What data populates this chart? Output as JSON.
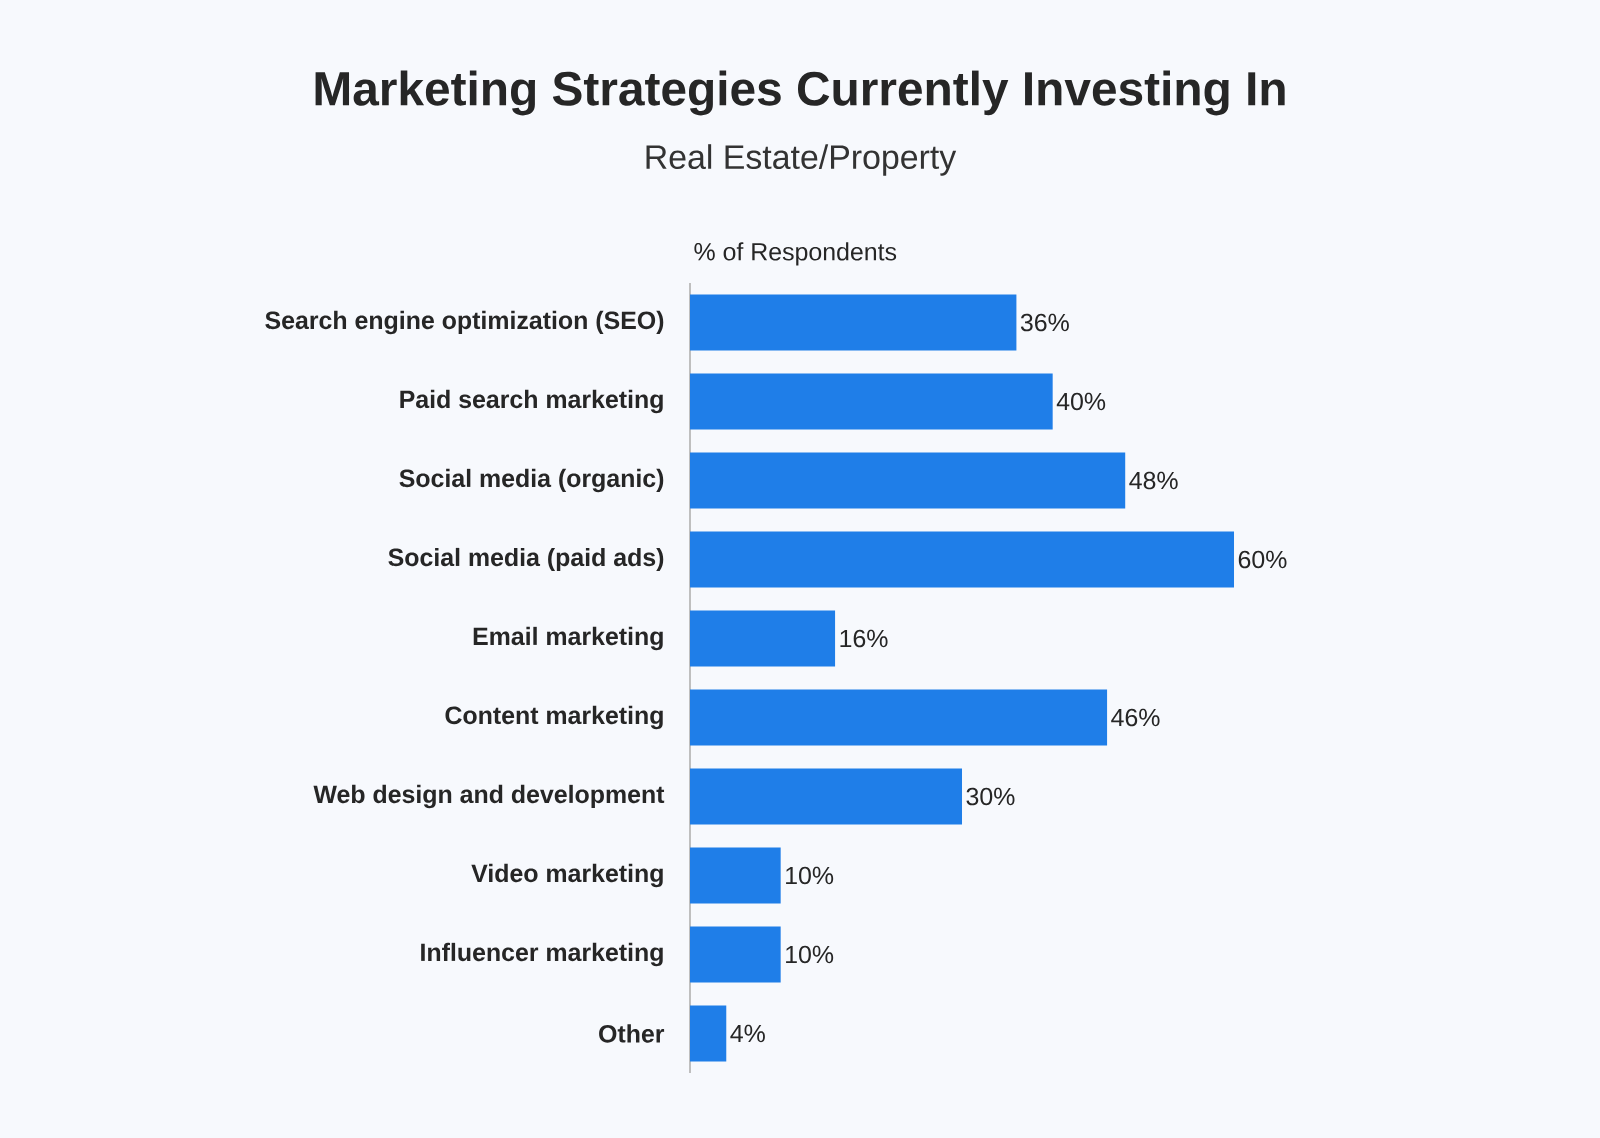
{
  "chart_data": {
    "type": "bar",
    "orientation": "horizontal",
    "title": "Marketing Strategies Currently Investing In",
    "subtitle": "Real Estate/Property",
    "xlabel": "% of Respondents",
    "categories": [
      "Search engine optimization (SEO)",
      "Paid search marketing",
      "Social media (organic)",
      "Social media (paid ads)",
      "Email marketing",
      "Content marketing",
      "Web design and development",
      "Video marketing",
      "Influencer marketing",
      "Other"
    ],
    "values": [
      36,
      40,
      48,
      60,
      16,
      46,
      30,
      10,
      10,
      4
    ],
    "value_labels": [
      "36%",
      "40%",
      "48%",
      "60%",
      "16%",
      "46%",
      "30%",
      "10%",
      "10%",
      "4%"
    ],
    "color": "#1f7ee8",
    "grid": false
  }
}
